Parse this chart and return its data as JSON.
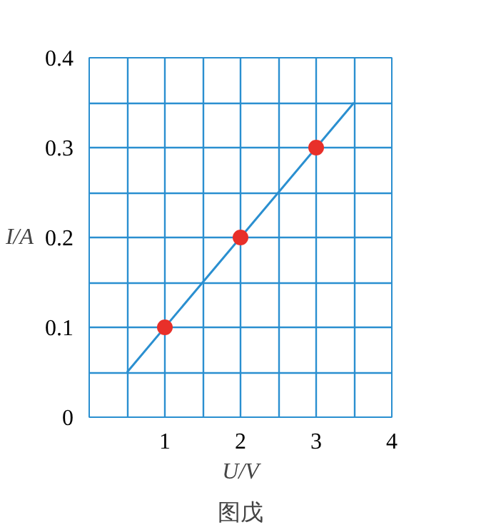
{
  "chart_data": {
    "type": "scatter",
    "xlabel": "U/V",
    "ylabel": "I/A",
    "series": [
      {
        "type": "line",
        "color": "#2a8fd0",
        "x": [
          0.5,
          3.5
        ],
        "values": [
          0.05,
          0.35
        ]
      },
      {
        "color": "#e8302a",
        "x": [
          1,
          2,
          3
        ],
        "values": [
          0.1,
          0.2,
          0.3
        ],
        "marker": "circle"
      }
    ],
    "xlim": [
      0,
      4
    ],
    "ylim": [
      0,
      0.4
    ],
    "xticks": [
      {
        "value": 0,
        "label": null
      },
      {
        "value": 0.5,
        "label": null
      },
      1,
      {
        "value": 1.5,
        "label": null
      },
      2,
      {
        "value": 2.5,
        "label": null
      },
      3,
      {
        "value": 3.5,
        "label": null
      },
      4
    ],
    "yticks": [
      0,
      {
        "value": 0.05,
        "label": null
      },
      0.1,
      {
        "value": 0.15,
        "label": null
      },
      0.2,
      {
        "value": 0.25,
        "label": null
      },
      0.3,
      {
        "value": 0.35,
        "label": null
      },
      0.4
    ],
    "grid": true,
    "annotations": [
      "图戊"
    ]
  }
}
